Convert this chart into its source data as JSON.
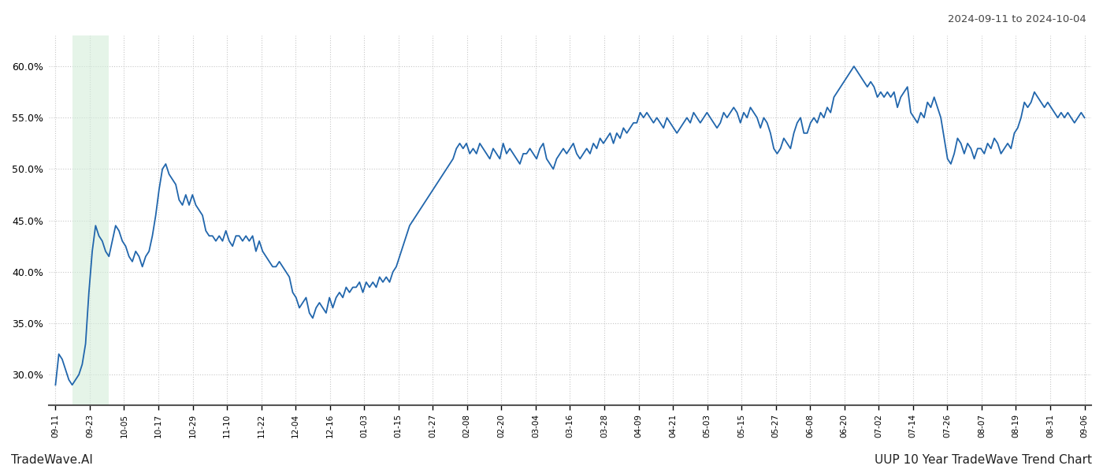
{
  "title_date_range": "2024-09-11 to 2024-10-04",
  "footer_left": "TradeWave.AI",
  "footer_right": "UUP 10 Year TradeWave Trend Chart",
  "line_color": "#2166ac",
  "line_width": 1.3,
  "shade_color": "#d4edda",
  "shade_alpha": 0.6,
  "shade_start_label": "09-17",
  "shade_end_label": "10-05",
  "background_color": "#ffffff",
  "grid_color": "#c8c8c8",
  "ylim": [
    27.0,
    63.0
  ],
  "yticks": [
    30.0,
    35.0,
    40.0,
    45.0,
    50.0,
    55.0,
    60.0
  ],
  "xtick_labels": [
    "09-11",
    "09-23",
    "10-05",
    "10-17",
    "10-29",
    "11-10",
    "11-22",
    "12-04",
    "12-16",
    "01-03",
    "01-15",
    "01-27",
    "02-08",
    "02-20",
    "03-04",
    "03-16",
    "03-28",
    "04-09",
    "04-21",
    "05-03",
    "05-15",
    "05-27",
    "06-08",
    "06-20",
    "07-02",
    "07-14",
    "07-26",
    "08-07",
    "08-19",
    "08-31",
    "09-06"
  ],
  "y_values": [
    29.0,
    32.0,
    31.5,
    30.5,
    29.5,
    29.0,
    29.5,
    30.0,
    31.0,
    33.0,
    38.0,
    42.0,
    44.5,
    43.5,
    43.0,
    42.0,
    41.5,
    43.0,
    44.5,
    44.0,
    43.0,
    42.5,
    41.5,
    41.0,
    42.0,
    41.5,
    40.5,
    41.5,
    42.0,
    43.5,
    45.5,
    48.0,
    50.0,
    50.5,
    49.5,
    49.0,
    48.5,
    47.0,
    46.5,
    47.5,
    46.5,
    47.5,
    46.5,
    46.0,
    45.5,
    44.0,
    43.5,
    43.5,
    43.0,
    43.5,
    43.0,
    44.0,
    43.0,
    42.5,
    43.5,
    43.5,
    43.0,
    43.5,
    43.0,
    43.5,
    42.0,
    43.0,
    42.0,
    41.5,
    41.0,
    40.5,
    40.5,
    41.0,
    40.5,
    40.0,
    39.5,
    38.0,
    37.5,
    36.5,
    37.0,
    37.5,
    36.0,
    35.5,
    36.5,
    37.0,
    36.5,
    36.0,
    37.5,
    36.5,
    37.5,
    38.0,
    37.5,
    38.5,
    38.0,
    38.5,
    38.5,
    39.0,
    38.0,
    39.0,
    38.5,
    39.0,
    38.5,
    39.5,
    39.0,
    39.5,
    39.0,
    40.0,
    40.5,
    41.5,
    42.5,
    43.5,
    44.5,
    45.0,
    45.5,
    46.0,
    46.5,
    47.0,
    47.5,
    48.0,
    48.5,
    49.0,
    49.5,
    50.0,
    50.5,
    51.0,
    52.0,
    52.5,
    52.0,
    52.5,
    51.5,
    52.0,
    51.5,
    52.5,
    52.0,
    51.5,
    51.0,
    52.0,
    51.5,
    51.0,
    52.5,
    51.5,
    52.0,
    51.5,
    51.0,
    50.5,
    51.5,
    51.5,
    52.0,
    51.5,
    51.0,
    52.0,
    52.5,
    51.0,
    50.5,
    50.0,
    51.0,
    51.5,
    52.0,
    51.5,
    52.0,
    52.5,
    51.5,
    51.0,
    51.5,
    52.0,
    51.5,
    52.5,
    52.0,
    53.0,
    52.5,
    53.0,
    53.5,
    52.5,
    53.5,
    53.0,
    54.0,
    53.5,
    54.0,
    54.5,
    54.5,
    55.5,
    55.0,
    55.5,
    55.0,
    54.5,
    55.0,
    54.5,
    54.0,
    55.0,
    54.5,
    54.0,
    53.5,
    54.0,
    54.5,
    55.0,
    54.5,
    55.5,
    55.0,
    54.5,
    55.0,
    55.5,
    55.0,
    54.5,
    54.0,
    54.5,
    55.5,
    55.0,
    55.5,
    56.0,
    55.5,
    54.5,
    55.5,
    55.0,
    56.0,
    55.5,
    55.0,
    54.0,
    55.0,
    54.5,
    53.5,
    52.0,
    51.5,
    52.0,
    53.0,
    52.5,
    52.0,
    53.5,
    54.5,
    55.0,
    53.5,
    53.5,
    54.5,
    55.0,
    54.5,
    55.5,
    55.0,
    56.0,
    55.5,
    57.0,
    57.5,
    58.0,
    58.5,
    59.0,
    59.5,
    60.0,
    59.5,
    59.0,
    58.5,
    58.0,
    58.5,
    58.0,
    57.0,
    57.5,
    57.0,
    57.5,
    57.0,
    57.5,
    56.0,
    57.0,
    57.5,
    58.0,
    55.5,
    55.0,
    54.5,
    55.5,
    55.0,
    56.5,
    56.0,
    57.0,
    56.0,
    55.0,
    53.0,
    51.0,
    50.5,
    51.5,
    53.0,
    52.5,
    51.5,
    52.5,
    52.0,
    51.0,
    52.0,
    52.0,
    51.5,
    52.5,
    52.0,
    53.0,
    52.5,
    51.5,
    52.0,
    52.5,
    52.0,
    53.5,
    54.0,
    55.0,
    56.5,
    56.0,
    56.5,
    57.5,
    57.0,
    56.5,
    56.0,
    56.5,
    56.0,
    55.5,
    55.0,
    55.5,
    55.0,
    55.5,
    55.0,
    54.5,
    55.0,
    55.5,
    55.0
  ]
}
